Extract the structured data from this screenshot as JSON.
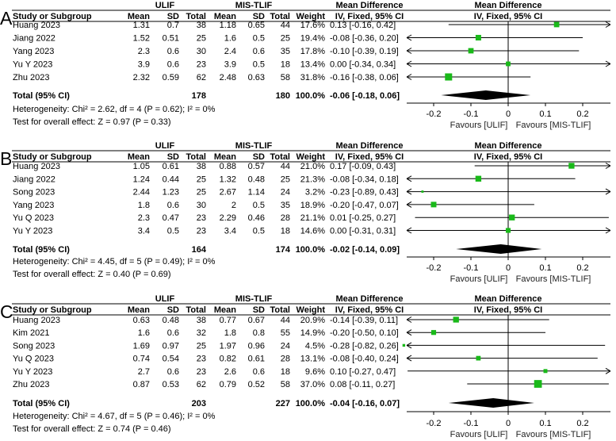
{
  "columns": {
    "study": "Study or Subgroup",
    "group_ulif": "ULIF",
    "group_mis": "MIS-TLIF",
    "mean": "Mean",
    "sd": "SD",
    "total": "Total",
    "weight": "Weight",
    "md_title": "Mean Difference",
    "md_method": "IV, Fixed, 95% CI"
  },
  "chart_data": [
    {
      "type": "forest",
      "panel": "A",
      "xlim": [
        -0.3,
        0.3
      ],
      "ticks": [
        "-0.2",
        "-0.1",
        "0",
        "0.1",
        "0.2"
      ],
      "favours_left": "Favours [ULIF]",
      "favours_right": "Favours [MIS-TLIF]",
      "studies": [
        {
          "name": "Huang 2023",
          "m1": "1.31",
          "sd1": "0.7",
          "n1": "38",
          "m2": "1.18",
          "sd2": "0.65",
          "n2": "44",
          "weight": "17.6%",
          "ci_text": "0.13 [-0.16, 0.42]",
          "md": 0.13,
          "lo": -0.16,
          "hi": 0.42,
          "w": 17.6
        },
        {
          "name": "Jiang 2022",
          "m1": "1.52",
          "sd1": "0.51",
          "n1": "25",
          "m2": "1.6",
          "sd2": "0.5",
          "n2": "25",
          "weight": "19.4%",
          "ci_text": "-0.08 [-0.36, 0.20]",
          "md": -0.08,
          "lo": -0.36,
          "hi": 0.2,
          "w": 19.4
        },
        {
          "name": "Yang 2023",
          "m1": "2.3",
          "sd1": "0.6",
          "n1": "30",
          "m2": "2.4",
          "sd2": "0.6",
          "n2": "35",
          "weight": "17.8%",
          "ci_text": "-0.10 [-0.39, 0.19]",
          "md": -0.1,
          "lo": -0.39,
          "hi": 0.19,
          "w": 17.8
        },
        {
          "name": "Yu Y 2023",
          "m1": "3.9",
          "sd1": "0.6",
          "n1": "23",
          "m2": "3.9",
          "sd2": "0.5",
          "n2": "18",
          "weight": "13.4%",
          "ci_text": "0.00 [-0.34, 0.34]",
          "md": 0.0,
          "lo": -0.34,
          "hi": 0.34,
          "w": 13.4
        },
        {
          "name": "Zhu 2023",
          "m1": "2.32",
          "sd1": "0.59",
          "n1": "62",
          "m2": "2.48",
          "sd2": "0.63",
          "n2": "58",
          "weight": "31.8%",
          "ci_text": "-0.16 [-0.38, 0.06]",
          "md": -0.16,
          "lo": -0.38,
          "hi": 0.06,
          "w": 31.8
        }
      ],
      "total": {
        "label": "Total (95% CI)",
        "n1": "178",
        "n2": "180",
        "weight": "100.0%",
        "ci_text": "-0.06 [-0.18, 0.06]",
        "md": -0.06,
        "lo": -0.18,
        "hi": 0.06
      },
      "heterogeneity": "Heterogeneity: Chi² = 2.62, df = 4 (P = 0.62); I² = 0%",
      "overall": "Test for overall effect: Z = 0.97 (P = 0.33)"
    },
    {
      "type": "forest",
      "panel": "B",
      "xlim": [
        -0.3,
        0.3
      ],
      "ticks": [
        "-0.2",
        "-0.1",
        "0",
        "0.1",
        "0.2"
      ],
      "favours_left": "Favours [ULIF]",
      "favours_right": "Favours [MIS-TLIF]",
      "studies": [
        {
          "name": "Huang 2023",
          "m1": "1.05",
          "sd1": "0.61",
          "n1": "38",
          "m2": "0.88",
          "sd2": "0.57",
          "n2": "44",
          "weight": "21.0%",
          "ci_text": "0.17 [-0.09, 0.43]",
          "md": 0.17,
          "lo": -0.09,
          "hi": 0.43,
          "w": 21.0
        },
        {
          "name": "Jiang 2022",
          "m1": "1.24",
          "sd1": "0.44",
          "n1": "25",
          "m2": "1.32",
          "sd2": "0.48",
          "n2": "25",
          "weight": "21.3%",
          "ci_text": "-0.08 [-0.34, 0.18]",
          "md": -0.08,
          "lo": -0.34,
          "hi": 0.18,
          "w": 21.3
        },
        {
          "name": "Song 2023",
          "m1": "2.44",
          "sd1": "1.23",
          "n1": "25",
          "m2": "2.67",
          "sd2": "1.14",
          "n2": "24",
          "weight": "3.2%",
          "ci_text": "-0.23 [-0.89, 0.43]",
          "md": -0.23,
          "lo": -0.89,
          "hi": 0.43,
          "w": 3.2
        },
        {
          "name": "Yang 2023",
          "m1": "1.8",
          "sd1": "0.6",
          "n1": "30",
          "m2": "2",
          "sd2": "0.5",
          "n2": "35",
          "weight": "18.9%",
          "ci_text": "-0.20 [-0.47, 0.07]",
          "md": -0.2,
          "lo": -0.47,
          "hi": 0.07,
          "w": 18.9
        },
        {
          "name": "Yu Q 2023",
          "m1": "2.3",
          "sd1": "0.47",
          "n1": "23",
          "m2": "2.29",
          "sd2": "0.46",
          "n2": "28",
          "weight": "21.1%",
          "ci_text": "0.01 [-0.25, 0.27]",
          "md": 0.01,
          "lo": -0.25,
          "hi": 0.27,
          "w": 21.1
        },
        {
          "name": "Yu Y 2023",
          "m1": "3.4",
          "sd1": "0.5",
          "n1": "23",
          "m2": "3.4",
          "sd2": "0.5",
          "n2": "18",
          "weight": "14.6%",
          "ci_text": "0.00 [-0.31, 0.31]",
          "md": 0.0,
          "lo": -0.31,
          "hi": 0.31,
          "w": 14.6
        }
      ],
      "total": {
        "label": "Total (95% CI)",
        "n1": "164",
        "n2": "174",
        "weight": "100.0%",
        "ci_text": "-0.02 [-0.14, 0.09]",
        "md": -0.02,
        "lo": -0.14,
        "hi": 0.09
      },
      "heterogeneity": "Heterogeneity: Chi² = 4.45, df = 5 (P = 0.49); I² = 0%",
      "overall": "Test for overall effect: Z = 0.40 (P = 0.69)"
    },
    {
      "type": "forest",
      "panel": "C",
      "xlim": [
        -0.3,
        0.3
      ],
      "ticks": [
        "-0.2",
        "-0.1",
        "0",
        "0.1",
        "0.2"
      ],
      "favours_left": "Favours [ULIF]",
      "favours_right": "Favours [MIS-TLIF]",
      "studies": [
        {
          "name": "Huang 2023",
          "m1": "0.63",
          "sd1": "0.48",
          "n1": "38",
          "m2": "0.77",
          "sd2": "0.67",
          "n2": "44",
          "weight": "20.9%",
          "ci_text": "-0.14 [-0.39, 0.11]",
          "md": -0.14,
          "lo": -0.39,
          "hi": 0.11,
          "w": 20.9
        },
        {
          "name": "Kim 2021",
          "m1": "1.6",
          "sd1": "0.6",
          "n1": "32",
          "m2": "1.8",
          "sd2": "0.8",
          "n2": "55",
          "weight": "14.9%",
          "ci_text": "-0.20 [-0.50, 0.10]",
          "md": -0.2,
          "lo": -0.5,
          "hi": 0.1,
          "w": 14.9
        },
        {
          "name": "Song 2023",
          "m1": "1.69",
          "sd1": "0.97",
          "n1": "25",
          "m2": "1.97",
          "sd2": "0.96",
          "n2": "24",
          "weight": "4.5%",
          "ci_text": "-0.28 [-0.82, 0.26]",
          "md": -0.28,
          "lo": -0.82,
          "hi": 0.26,
          "w": 4.5
        },
        {
          "name": "Yu Q 2023",
          "m1": "0.74",
          "sd1": "0.54",
          "n1": "23",
          "m2": "0.82",
          "sd2": "0.61",
          "n2": "28",
          "weight": "13.1%",
          "ci_text": "-0.08 [-0.40, 0.24]",
          "md": -0.08,
          "lo": -0.4,
          "hi": 0.24,
          "w": 13.1
        },
        {
          "name": "Yu Y 2023",
          "m1": "2.7",
          "sd1": "0.6",
          "n1": "23",
          "m2": "2.6",
          "sd2": "0.6",
          "n2": "18",
          "weight": "9.6%",
          "ci_text": "0.10 [-0.27, 0.47]",
          "md": 0.1,
          "lo": -0.27,
          "hi": 0.47,
          "w": 9.6
        },
        {
          "name": "Zhu 2023",
          "m1": "0.87",
          "sd1": "0.53",
          "n1": "62",
          "m2": "0.79",
          "sd2": "0.52",
          "n2": "58",
          "weight": "37.0%",
          "ci_text": "0.08 [-0.11, 0.27]",
          "md": 0.08,
          "lo": -0.11,
          "hi": 0.27,
          "w": 37.0
        }
      ],
      "total": {
        "label": "Total (95% CI)",
        "n1": "203",
        "n2": "227",
        "weight": "100.0%",
        "ci_text": "-0.04 [-0.16, 0.07]",
        "md": -0.04,
        "lo": -0.16,
        "hi": 0.07
      },
      "heterogeneity": "Heterogeneity: Chi² = 4.67, df = 5 (P = 0.46); I² = 0%",
      "overall": "Test for overall effect: Z = 0.74 (P = 0.46)"
    }
  ]
}
